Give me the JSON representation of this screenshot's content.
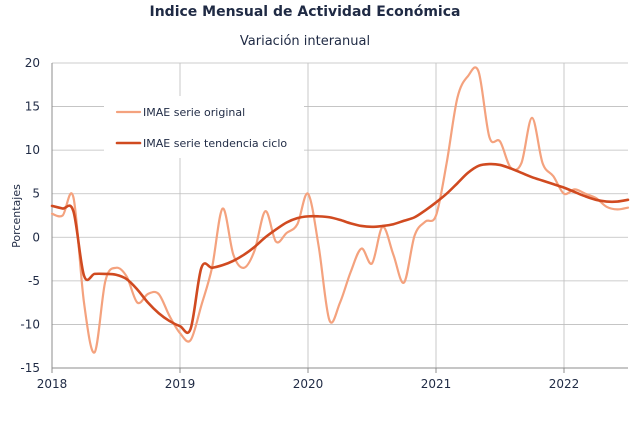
{
  "chart_data": {
    "type": "line",
    "title": "Indice Mensual de  Actividad Económica",
    "subtitle": "Variación interanual",
    "xlabel": "",
    "ylabel": "Porcentajes",
    "xlim": [
      2018,
      2022.5
    ],
    "ylim": [
      -15,
      20
    ],
    "yticks": [
      -15,
      -10,
      -5,
      0,
      5,
      10,
      15,
      20
    ],
    "xticks": [
      2018,
      2019,
      2020,
      2021,
      2022
    ],
    "grid": "horizontal",
    "legend_position": "upper-left",
    "series": [
      {
        "name": "IMAE serie original",
        "color": "#f4a27e",
        "width": 2.2,
        "x": [
          2018.0,
          2018.083,
          2018.167,
          2018.25,
          2018.333,
          2018.417,
          2018.5,
          2018.583,
          2018.667,
          2018.75,
          2018.833,
          2018.917,
          2019.0,
          2019.083,
          2019.167,
          2019.25,
          2019.333,
          2019.417,
          2019.5,
          2019.583,
          2019.667,
          2019.75,
          2019.833,
          2019.917,
          2020.0,
          2020.083,
          2020.167,
          2020.25,
          2020.333,
          2020.417,
          2020.5,
          2020.583,
          2020.667,
          2020.75,
          2020.833,
          2020.917,
          2021.0,
          2021.083,
          2021.167,
          2021.25,
          2021.333,
          2021.417,
          2021.5,
          2021.583,
          2021.667,
          2021.75,
          2021.833,
          2021.917,
          2022.0,
          2022.083,
          2022.167,
          2022.25,
          2022.333,
          2022.417,
          2022.5
        ],
        "y": [
          2.7,
          2.5,
          4.6,
          -7.5,
          -13.2,
          -5.0,
          -3.5,
          -4.5,
          -7.5,
          -6.5,
          -6.5,
          -9.0,
          -11.0,
          -11.8,
          -7.8,
          -3.5,
          3.3,
          -2.0,
          -3.5,
          -1.5,
          3.0,
          -0.5,
          0.5,
          1.5,
          5.0,
          -1.0,
          -9.5,
          -7.5,
          -4.0,
          -1.3,
          -3.0,
          1.2,
          -2.0,
          -5.2,
          0.2,
          1.8,
          2.5,
          8.5,
          16.0,
          18.5,
          19.0,
          11.5,
          11.0,
          8.0,
          8.5,
          13.7,
          8.5,
          7.0,
          5.0,
          5.5,
          5.0,
          4.5,
          3.5,
          3.2,
          3.4
        ]
      },
      {
        "name": "IMAE serie  tendencia ciclo",
        "color": "#d04a20",
        "width": 2.6,
        "x": [
          2018.0,
          2018.083,
          2018.167,
          2018.25,
          2018.333,
          2018.417,
          2018.5,
          2018.583,
          2018.667,
          2018.75,
          2018.833,
          2018.917,
          2019.0,
          2019.083,
          2019.167,
          2019.25,
          2019.333,
          2019.417,
          2019.5,
          2019.583,
          2019.667,
          2019.75,
          2019.833,
          2019.917,
          2020.0,
          2020.083,
          2020.167,
          2020.25,
          2020.333,
          2020.417,
          2020.5,
          2020.583,
          2020.667,
          2020.75,
          2020.833,
          2020.917,
          2021.0,
          2021.083,
          2021.167,
          2021.25,
          2021.333,
          2021.417,
          2021.5,
          2021.583,
          2021.667,
          2021.75,
          2021.833,
          2021.917,
          2022.0,
          2022.083,
          2022.167,
          2022.25,
          2022.333,
          2022.417,
          2022.5
        ],
        "y": [
          3.6,
          3.3,
          3.0,
          -4.4,
          -4.2,
          -4.2,
          -4.3,
          -4.8,
          -6.0,
          -7.5,
          -8.7,
          -9.6,
          -10.2,
          -10.5,
          -3.5,
          -3.5,
          -3.2,
          -2.7,
          -2.0,
          -1.1,
          0.0,
          0.9,
          1.7,
          2.2,
          2.4,
          2.4,
          2.3,
          2.0,
          1.6,
          1.3,
          1.2,
          1.3,
          1.5,
          1.9,
          2.3,
          3.1,
          4.0,
          5.0,
          6.2,
          7.4,
          8.2,
          8.4,
          8.3,
          7.9,
          7.4,
          6.9,
          6.5,
          6.1,
          5.7,
          5.2,
          4.7,
          4.3,
          4.1,
          4.1,
          4.3
        ]
      }
    ]
  }
}
